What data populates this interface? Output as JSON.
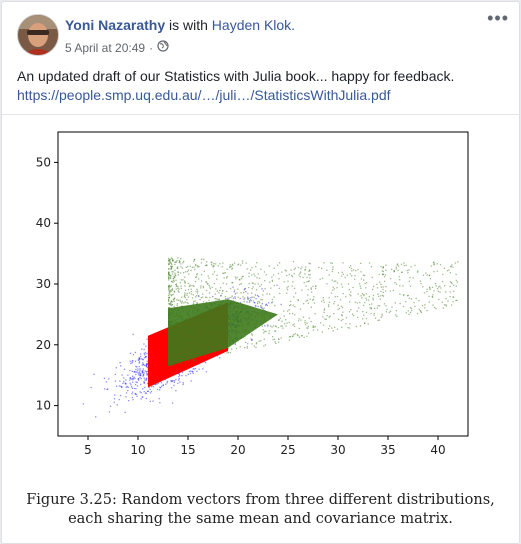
{
  "post": {
    "author": "Yoni Nazarathy",
    "with_text": " is with ",
    "tagged": "Hayden Klok.",
    "timestamp": "5 April at 20:49",
    "separator": "·",
    "privacy_icon": "globe-icon",
    "more_icon": "more-options-icon",
    "more_label": "•••",
    "text": "An updated draft of our Statistics with Julia book... happy for feedback.",
    "link": "https://people.smp.uq.edu.au/…/juli…/StatisticsWithJulia.pdf"
  },
  "figure": {
    "caption_line1": "Figure 3.25: Random vectors from three different distributions,",
    "caption_line2": "each sharing the same mean and covariance matrix."
  },
  "chart_data": {
    "type": "scatter",
    "xlim": [
      2,
      43
    ],
    "ylim": [
      5,
      55
    ],
    "xticks": [
      5,
      10,
      15,
      20,
      25,
      30,
      35,
      40
    ],
    "yticks": [
      10,
      20,
      30,
      40,
      50
    ],
    "grid": false,
    "series": [
      {
        "color": "#0000ff",
        "distribution": "normal",
        "mean": [
          15,
          20
        ],
        "spread": [
          2.8,
          3.3
        ],
        "correlation": 0.8
      },
      {
        "color": "#ff0000",
        "distribution": "uniform-parallelogram",
        "corners": [
          [
            11,
            13
          ],
          [
            19,
            19
          ],
          [
            19,
            27
          ],
          [
            11,
            21.5
          ]
        ]
      },
      {
        "color": "#3d7a1a",
        "distribution": "skewed-wedge",
        "apex": [
          13,
          16.5
        ],
        "x_range": [
          13,
          42
        ],
        "upper_edge_at_x13": 26
      }
    ]
  }
}
